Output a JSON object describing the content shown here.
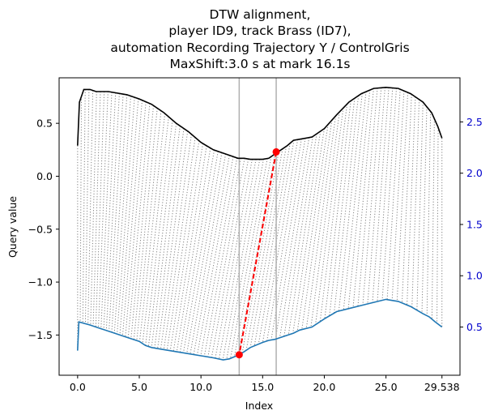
{
  "chart_data": {
    "type": "line",
    "title_lines": [
      "DTW alignment,",
      "player ID9, track Brass (ID7),",
      "automation Recording Trajectory Y / ControlGris",
      "MaxShift:3.0 s at mark 16.1s"
    ],
    "xlabel": "Index",
    "ylabel": "Query value",
    "xlim": [
      -1.5,
      31
    ],
    "ylim_left": [
      -1.88,
      0.93
    ],
    "ylim_right": [
      0.03,
      2.93
    ],
    "x_ticks": [
      0.0,
      5.0,
      10.0,
      15.0,
      20.0,
      25.0,
      29.538
    ],
    "x_tick_labels": [
      "0.0",
      "5.0",
      "10.0",
      "15.0",
      "20.0",
      "25.0",
      "29.538"
    ],
    "y_ticks_left": [
      0.5,
      0.0,
      -0.5,
      -1.0,
      -1.5
    ],
    "y_tick_labels_left": [
      "0.5",
      "0.0",
      "−0.5",
      "−1.0",
      "−1.5"
    ],
    "y_ticks_right": [
      2.5,
      2.0,
      1.5,
      1.0,
      0.5
    ],
    "y_tick_labels_right": [
      "2.5",
      "2.0",
      "1.5",
      "1.0",
      "0.5"
    ],
    "vertical_lines_x": [
      13.1,
      16.1
    ],
    "colors": {
      "query": "#000000",
      "reference": "#1f77b4",
      "connectors": "#808080",
      "highlight": "#ff0000",
      "vlines": "#b0b0b0",
      "right_axis": "#0000cc"
    },
    "series": [
      {
        "axis": "left",
        "x": [
          0,
          0.15,
          0.5,
          1.0,
          1.5,
          2.5,
          4.0,
          5.0,
          6.0,
          7.0,
          8.0,
          9.0,
          10.0,
          11.0,
          12.0,
          12.5,
          13.0,
          13.5,
          14.0,
          15.0,
          15.5,
          16.0,
          16.5,
          17.0,
          17.5,
          18.0,
          19.0,
          20.0,
          21.0,
          22.0,
          23.0,
          24.0,
          25.0,
          26.0,
          27.0,
          28.0,
          28.7,
          29.2,
          29.538
        ],
        "y": [
          0.29,
          0.7,
          0.82,
          0.82,
          0.8,
          0.8,
          0.77,
          0.73,
          0.68,
          0.6,
          0.5,
          0.42,
          0.32,
          0.25,
          0.21,
          0.19,
          0.17,
          0.17,
          0.16,
          0.16,
          0.17,
          0.21,
          0.25,
          0.29,
          0.34,
          0.35,
          0.37,
          0.45,
          0.58,
          0.7,
          0.78,
          0.83,
          0.84,
          0.83,
          0.78,
          0.7,
          0.6,
          0.47,
          0.36
        ]
      },
      {
        "axis": "right",
        "x": [
          0,
          0.1,
          1.0,
          2.0,
          3.0,
          4.0,
          5.0,
          5.5,
          6.0,
          7.0,
          8.0,
          9.0,
          10.0,
          11.0,
          11.8,
          12.3,
          13.1,
          13.5,
          14.0,
          15.0,
          15.5,
          16.0,
          17.0,
          17.5,
          18.0,
          19.0,
          20.0,
          21.0,
          22.0,
          23.0,
          24.0,
          25.0,
          26.0,
          27.0,
          28.0,
          28.5,
          29.0,
          29.538
        ],
        "y": [
          0.27,
          0.55,
          0.52,
          0.48,
          0.44,
          0.4,
          0.36,
          0.32,
          0.3,
          0.28,
          0.26,
          0.24,
          0.22,
          0.2,
          0.18,
          0.19,
          0.23,
          0.26,
          0.3,
          0.35,
          0.37,
          0.38,
          0.42,
          0.44,
          0.47,
          0.5,
          0.58,
          0.65,
          0.68,
          0.71,
          0.74,
          0.77,
          0.75,
          0.7,
          0.63,
          0.6,
          0.55,
          0.5
        ]
      }
    ],
    "highlight_pair": {
      "query_point": [
        16.1,
        0.23
      ],
      "reference_point": [
        13.1,
        0.23
      ]
    }
  }
}
